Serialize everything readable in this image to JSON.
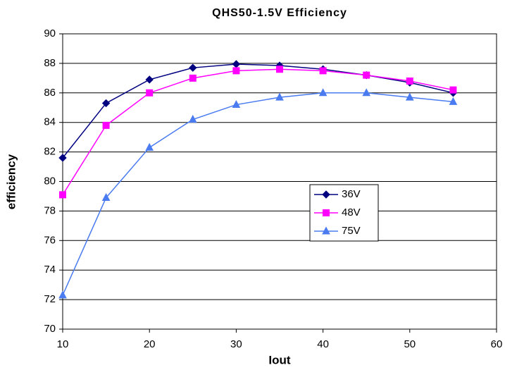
{
  "chart_data": {
    "type": "line",
    "title": "QHS50-1.5V Efficiency",
    "x_label": "Iout",
    "y_label": "efficiency",
    "x": [
      10,
      15,
      20,
      25,
      30,
      35,
      40,
      45,
      50,
      55
    ],
    "series": [
      {
        "name": "36V",
        "color": "#000080",
        "marker": "diamond",
        "values": [
          81.6,
          85.3,
          86.9,
          87.7,
          87.95,
          87.85,
          87.6,
          87.2,
          86.7,
          86.0
        ]
      },
      {
        "name": "48V",
        "color": "#ff00ff",
        "marker": "square",
        "values": [
          79.1,
          83.8,
          86.0,
          87.0,
          87.5,
          87.6,
          87.5,
          87.2,
          86.8,
          86.2
        ]
      },
      {
        "name": "75V",
        "color": "#4a7bf0",
        "marker": "triangle",
        "values": [
          72.3,
          78.9,
          82.3,
          84.2,
          85.2,
          85.7,
          86.0,
          86.0,
          85.7,
          85.4
        ]
      }
    ],
    "xlim": [
      10,
      60
    ],
    "xticks": [
      10,
      20,
      30,
      40,
      50,
      60
    ],
    "ylim": [
      70,
      90
    ],
    "yticks": [
      70,
      72,
      74,
      76,
      78,
      80,
      82,
      84,
      86,
      88,
      90
    ],
    "grid": true
  }
}
